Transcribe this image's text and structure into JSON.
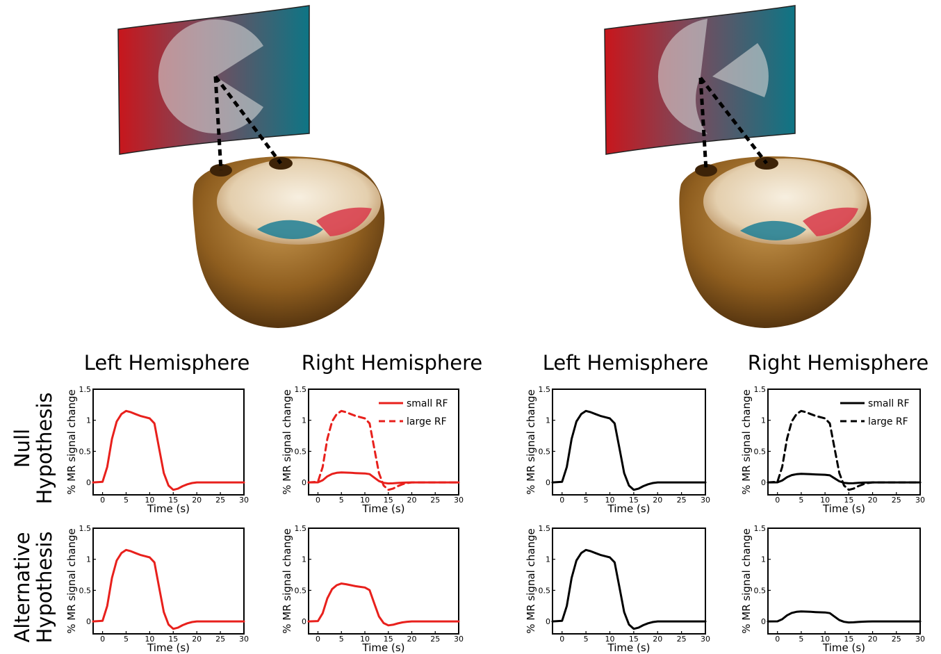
{
  "column_headers": [
    "Left Hemisphere",
    "Right Hemisphere",
    "Left Hemisphere",
    "Right Hemisphere"
  ],
  "row_headers": {
    "null": [
      "Null",
      "Hypothesis"
    ],
    "alternative": [
      "Alternative",
      "Hypothesis"
    ]
  },
  "colors": {
    "red": "#e8201c",
    "black": "#000000"
  },
  "illustration": {
    "description_icons": [
      "screen-gradient-icon",
      "pacman-stimulus-icon",
      "brain-volume-icon"
    ]
  },
  "chart_data": [
    {
      "type": "line",
      "panel": "left-config-null-left-hemisphere",
      "xlabel": "Time (s)",
      "ylabel": "% MR signal change",
      "xlim": [
        -2,
        30
      ],
      "ylim": [
        -0.2,
        1.5
      ],
      "xticks": [
        "0",
        "5",
        "10",
        "15",
        "20",
        "25",
        "30"
      ],
      "yticks": [
        "0",
        "0.5",
        "1",
        "1.5"
      ],
      "color": "#e8201c",
      "series": [
        {
          "style": "solid",
          "scale": 1.0,
          "x": [
            -2,
            0,
            1,
            2,
            3,
            4,
            5,
            6,
            7,
            8,
            9,
            10,
            11,
            12,
            13,
            14,
            15,
            16,
            17,
            18,
            19,
            20,
            22,
            24,
            26,
            28,
            30
          ],
          "y": [
            0,
            0.01,
            0.25,
            0.7,
            0.98,
            1.1,
            1.15,
            1.13,
            1.1,
            1.07,
            1.05,
            1.03,
            0.95,
            0.55,
            0.15,
            -0.05,
            -0.12,
            -0.1,
            -0.06,
            -0.03,
            -0.01,
            0,
            0,
            0,
            0,
            0,
            0
          ]
        }
      ]
    },
    {
      "type": "line",
      "panel": "left-config-null-right-hemisphere",
      "xlabel": "Time (s)",
      "ylabel": "% MR signal change",
      "xlim": [
        -2,
        30
      ],
      "ylim": [
        -0.2,
        1.5
      ],
      "xticks": [
        "0",
        "5",
        "10",
        "15",
        "20",
        "25",
        "30"
      ],
      "yticks": [
        "0",
        "0.5",
        "1",
        "1.5"
      ],
      "color": "#e8201c",
      "legend": {
        "position": "top-right",
        "entries": [
          {
            "label": "small RF",
            "style": "solid"
          },
          {
            "label": "large RF",
            "style": "dashed"
          }
        ]
      },
      "series": [
        {
          "name": "small RF",
          "style": "solid",
          "scale": 0.14,
          "x": [
            -2,
            0,
            1,
            2,
            3,
            4,
            5,
            6,
            7,
            8,
            9,
            10,
            11,
            12,
            13,
            14,
            15,
            16,
            17,
            18,
            19,
            20,
            22,
            24,
            26,
            28,
            30
          ],
          "y": [
            0,
            0.01,
            0.25,
            0.7,
            0.98,
            1.1,
            1.15,
            1.13,
            1.1,
            1.07,
            1.05,
            1.03,
            0.95,
            0.55,
            0.15,
            -0.05,
            -0.12,
            -0.1,
            -0.06,
            -0.03,
            -0.01,
            0,
            0,
            0,
            0,
            0,
            0
          ]
        },
        {
          "name": "large RF",
          "style": "dashed",
          "scale": 1.0,
          "x": [
            -2,
            0,
            1,
            2,
            3,
            4,
            5,
            6,
            7,
            8,
            9,
            10,
            11,
            12,
            13,
            14,
            15,
            16,
            17,
            18,
            19,
            20,
            22,
            24,
            26,
            28,
            30
          ],
          "y": [
            0,
            0.01,
            0.25,
            0.7,
            0.98,
            1.1,
            1.15,
            1.13,
            1.1,
            1.07,
            1.05,
            1.03,
            0.95,
            0.55,
            0.15,
            -0.05,
            -0.12,
            -0.1,
            -0.06,
            -0.03,
            -0.01,
            0,
            0,
            0,
            0,
            0,
            0
          ]
        }
      ]
    },
    {
      "type": "line",
      "panel": "left-config-alt-left-hemisphere",
      "xlabel": "Time (s)",
      "ylabel": "% MR signal change",
      "xlim": [
        -2,
        30
      ],
      "ylim": [
        -0.2,
        1.5
      ],
      "xticks": [
        "0",
        "5",
        "10",
        "15",
        "20",
        "25",
        "30"
      ],
      "yticks": [
        "0",
        "0.5",
        "1",
        "1.5"
      ],
      "color": "#e8201c",
      "series": [
        {
          "style": "solid",
          "scale": 1.0,
          "x": [
            -2,
            0,
            1,
            2,
            3,
            4,
            5,
            6,
            7,
            8,
            9,
            10,
            11,
            12,
            13,
            14,
            15,
            16,
            17,
            18,
            19,
            20,
            22,
            24,
            26,
            28,
            30
          ],
          "y": [
            0,
            0.01,
            0.25,
            0.7,
            0.98,
            1.1,
            1.15,
            1.13,
            1.1,
            1.07,
            1.05,
            1.03,
            0.95,
            0.55,
            0.15,
            -0.05,
            -0.12,
            -0.1,
            -0.06,
            -0.03,
            -0.01,
            0,
            0,
            0,
            0,
            0,
            0
          ]
        }
      ]
    },
    {
      "type": "line",
      "panel": "left-config-alt-right-hemisphere",
      "xlabel": "Time (s)",
      "ylabel": "% MR signal change",
      "xlim": [
        -2,
        30
      ],
      "ylim": [
        -0.2,
        1.5
      ],
      "xticks": [
        "0",
        "5",
        "10",
        "15",
        "20",
        "25",
        "30"
      ],
      "yticks": [
        "0",
        "0.5",
        "1",
        "1.5"
      ],
      "color": "#e8201c",
      "series": [
        {
          "style": "solid",
          "scale": 0.53,
          "x": [
            -2,
            0,
            1,
            2,
            3,
            4,
            5,
            6,
            7,
            8,
            9,
            10,
            11,
            12,
            13,
            14,
            15,
            16,
            17,
            18,
            19,
            20,
            22,
            24,
            26,
            28,
            30
          ],
          "y": [
            0,
            0.01,
            0.25,
            0.7,
            0.98,
            1.1,
            1.15,
            1.13,
            1.1,
            1.07,
            1.05,
            1.03,
            0.95,
            0.55,
            0.15,
            -0.05,
            -0.12,
            -0.1,
            -0.06,
            -0.03,
            -0.01,
            0,
            0,
            0,
            0,
            0,
            0
          ]
        }
      ]
    },
    {
      "type": "line",
      "panel": "right-config-null-left-hemisphere",
      "xlabel": "Time (s)",
      "ylabel": "% MR signal change",
      "xlim": [
        -2,
        30
      ],
      "ylim": [
        -0.2,
        1.5
      ],
      "xticks": [
        "0",
        "5",
        "10",
        "15",
        "20",
        "25",
        "30"
      ],
      "yticks": [
        "0",
        "0.5",
        "1",
        "1.5"
      ],
      "color": "#000000",
      "series": [
        {
          "style": "solid",
          "scale": 1.0,
          "x": [
            -2,
            0,
            1,
            2,
            3,
            4,
            5,
            6,
            7,
            8,
            9,
            10,
            11,
            12,
            13,
            14,
            15,
            16,
            17,
            18,
            19,
            20,
            22,
            24,
            26,
            28,
            30
          ],
          "y": [
            0,
            0.01,
            0.25,
            0.7,
            0.98,
            1.1,
            1.15,
            1.13,
            1.1,
            1.07,
            1.05,
            1.03,
            0.95,
            0.55,
            0.15,
            -0.05,
            -0.12,
            -0.1,
            -0.06,
            -0.03,
            -0.01,
            0,
            0,
            0,
            0,
            0,
            0
          ]
        }
      ]
    },
    {
      "type": "line",
      "panel": "right-config-null-right-hemisphere",
      "xlabel": "Time (s)",
      "ylabel": "% MR signal change",
      "xlim": [
        -2,
        30
      ],
      "ylim": [
        -0.2,
        1.5
      ],
      "xticks": [
        "0",
        "5",
        "10",
        "15",
        "20",
        "25",
        "30"
      ],
      "yticks": [
        "0",
        "0.5",
        "1",
        "1.5"
      ],
      "color": "#000000",
      "legend": {
        "position": "top-right",
        "entries": [
          {
            "label": "small RF",
            "style": "solid"
          },
          {
            "label": "large RF",
            "style": "dashed"
          }
        ]
      },
      "series": [
        {
          "name": "small RF",
          "style": "solid",
          "scale": 0.12,
          "x": [
            -2,
            0,
            1,
            2,
            3,
            4,
            5,
            6,
            7,
            8,
            9,
            10,
            11,
            12,
            13,
            14,
            15,
            16,
            17,
            18,
            19,
            20,
            22,
            24,
            26,
            28,
            30
          ],
          "y": [
            0,
            0.01,
            0.25,
            0.7,
            0.98,
            1.1,
            1.15,
            1.13,
            1.1,
            1.07,
            1.05,
            1.03,
            0.95,
            0.55,
            0.15,
            -0.05,
            -0.12,
            -0.1,
            -0.06,
            -0.03,
            -0.01,
            0,
            0,
            0,
            0,
            0,
            0
          ]
        },
        {
          "name": "large RF",
          "style": "dashed",
          "scale": 1.0,
          "x": [
            -2,
            0,
            1,
            2,
            3,
            4,
            5,
            6,
            7,
            8,
            9,
            10,
            11,
            12,
            13,
            14,
            15,
            16,
            17,
            18,
            19,
            20,
            22,
            24,
            26,
            28,
            30
          ],
          "y": [
            0,
            0.01,
            0.25,
            0.7,
            0.98,
            1.1,
            1.15,
            1.13,
            1.1,
            1.07,
            1.05,
            1.03,
            0.95,
            0.55,
            0.15,
            -0.05,
            -0.12,
            -0.1,
            -0.06,
            -0.03,
            -0.01,
            0,
            0,
            0,
            0,
            0,
            0
          ]
        }
      ]
    },
    {
      "type": "line",
      "panel": "right-config-alt-left-hemisphere",
      "xlabel": "Time (s)",
      "ylabel": "% MR signal change",
      "xlim": [
        -2,
        30
      ],
      "ylim": [
        -0.2,
        1.5
      ],
      "xticks": [
        "0",
        "5",
        "10",
        "15",
        "20",
        "25",
        "30"
      ],
      "yticks": [
        "0",
        "0.5",
        "1",
        "1.5"
      ],
      "color": "#000000",
      "series": [
        {
          "style": "solid",
          "scale": 1.0,
          "x": [
            -2,
            0,
            1,
            2,
            3,
            4,
            5,
            6,
            7,
            8,
            9,
            10,
            11,
            12,
            13,
            14,
            15,
            16,
            17,
            18,
            19,
            20,
            22,
            24,
            26,
            28,
            30
          ],
          "y": [
            0,
            0.01,
            0.25,
            0.7,
            0.98,
            1.1,
            1.15,
            1.13,
            1.1,
            1.07,
            1.05,
            1.03,
            0.95,
            0.55,
            0.15,
            -0.05,
            -0.12,
            -0.1,
            -0.06,
            -0.03,
            -0.01,
            0,
            0,
            0,
            0,
            0,
            0
          ]
        }
      ]
    },
    {
      "type": "line",
      "panel": "right-config-alt-right-hemisphere",
      "xlabel": "Time (s)",
      "ylabel": "% MR signal change",
      "xlim": [
        -2,
        30
      ],
      "ylim": [
        -0.2,
        1.5
      ],
      "xticks": [
        "0",
        "5",
        "10",
        "15",
        "20",
        "25",
        "30"
      ],
      "yticks": [
        "0",
        "0.5",
        "1",
        "1.5"
      ],
      "color": "#000000",
      "series": [
        {
          "style": "solid",
          "scale": 0.14,
          "x": [
            -2,
            0,
            1,
            2,
            3,
            4,
            5,
            6,
            7,
            8,
            9,
            10,
            11,
            12,
            13,
            14,
            15,
            16,
            17,
            18,
            19,
            20,
            22,
            24,
            26,
            28,
            30
          ],
          "y": [
            0,
            0.01,
            0.25,
            0.7,
            0.98,
            1.1,
            1.15,
            1.13,
            1.1,
            1.07,
            1.05,
            1.03,
            0.95,
            0.55,
            0.15,
            -0.05,
            -0.12,
            -0.1,
            -0.06,
            -0.03,
            -0.01,
            0,
            0,
            0,
            0,
            0,
            0
          ]
        }
      ]
    }
  ]
}
